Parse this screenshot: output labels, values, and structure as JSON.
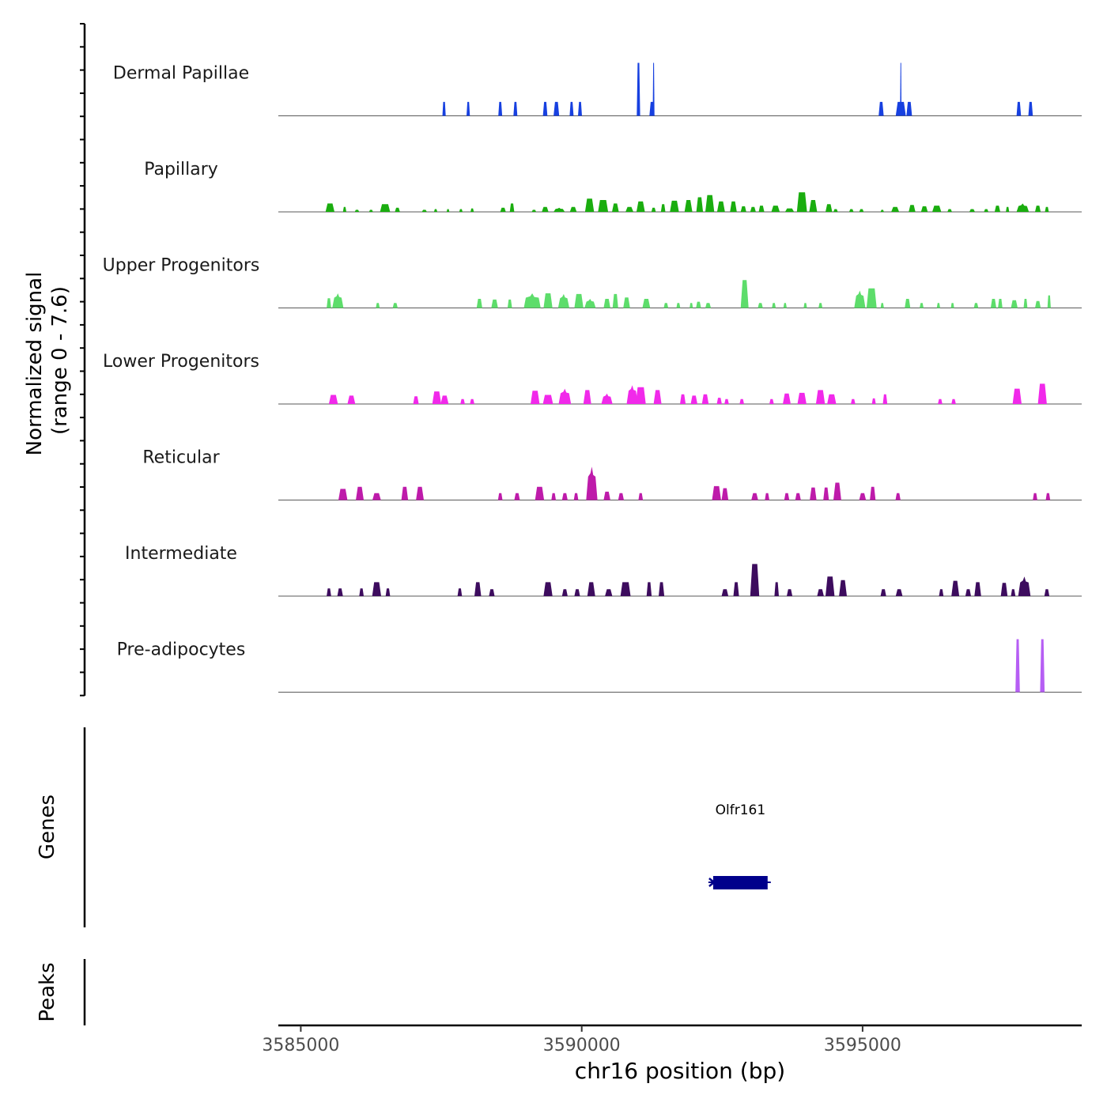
{
  "chart_data": {
    "type": "area",
    "chromosome": "chr16",
    "xlabel": "chr16 position (bp)",
    "xlim": [
      3584600,
      3598900
    ],
    "x_ticks": [
      3585000,
      3590000,
      3595000
    ],
    "x_tick_labels": [
      "3585000",
      "3590000",
      "3595000"
    ],
    "ylabel_line1": "Normalized signal",
    "ylabel_line2": "(range 0 - 7.6)",
    "ylim": [
      0,
      7.6
    ],
    "genes_label": "Genes",
    "peaks_label": "Peaks",
    "tracks": [
      {
        "name": "Dermal Papillae",
        "color": "#1740e0",
        "peaks": [
          [
            3587550,
            60,
            2.0
          ],
          [
            3587980,
            60,
            2.0
          ],
          [
            3588550,
            70,
            2.0
          ],
          [
            3588820,
            70,
            2.0
          ],
          [
            3589350,
            80,
            2.0
          ],
          [
            3589550,
            100,
            2.0
          ],
          [
            3589820,
            70,
            2.0
          ],
          [
            3589970,
            70,
            2.0
          ],
          [
            3591010,
            60,
            7.6
          ],
          [
            3591250,
            90,
            2.0
          ],
          [
            3591280,
            30,
            7.6
          ],
          [
            3595330,
            90,
            2.0
          ],
          [
            3595680,
            180,
            2.0
          ],
          [
            3595680,
            25,
            7.6
          ],
          [
            3595830,
            100,
            2.0
          ],
          [
            3597780,
            80,
            2.0
          ],
          [
            3597990,
            80,
            2.0
          ]
        ]
      },
      {
        "name": "Papillary",
        "color": "#1aad0f",
        "peaks": [
          [
            3585520,
            160,
            1.2
          ],
          [
            3585780,
            60,
            0.7
          ],
          [
            3586000,
            80,
            0.3
          ],
          [
            3586250,
            70,
            0.3
          ],
          [
            3586500,
            180,
            1.1
          ],
          [
            3586720,
            90,
            0.6
          ],
          [
            3587200,
            90,
            0.3
          ],
          [
            3587400,
            60,
            0.4
          ],
          [
            3587620,
            50,
            0.4
          ],
          [
            3587850,
            60,
            0.4
          ],
          [
            3588050,
            60,
            0.5
          ],
          [
            3588600,
            100,
            0.6
          ],
          [
            3588760,
            80,
            1.2
          ],
          [
            3589150,
            80,
            0.3
          ],
          [
            3589350,
            120,
            0.7
          ],
          [
            3589600,
            200,
            0.6
          ],
          [
            3589850,
            120,
            0.7
          ],
          [
            3590140,
            160,
            1.9
          ],
          [
            3590380,
            180,
            1.7
          ],
          [
            3590600,
            120,
            1.2
          ],
          [
            3590850,
            140,
            0.7
          ],
          [
            3591050,
            150,
            1.5
          ],
          [
            3591280,
            80,
            0.6
          ],
          [
            3591450,
            80,
            1.1
          ],
          [
            3591650,
            160,
            1.6
          ],
          [
            3591900,
            140,
            1.7
          ],
          [
            3592100,
            120,
            2.1
          ],
          [
            3592280,
            160,
            2.4
          ],
          [
            3592480,
            140,
            1.5
          ],
          [
            3592700,
            120,
            1.5
          ],
          [
            3592880,
            100,
            0.8
          ],
          [
            3593050,
            100,
            0.7
          ],
          [
            3593200,
            100,
            0.9
          ],
          [
            3593450,
            150,
            0.9
          ],
          [
            3593700,
            160,
            0.5
          ],
          [
            3593920,
            180,
            2.8
          ],
          [
            3594120,
            140,
            1.7
          ],
          [
            3594400,
            120,
            1.1
          ],
          [
            3594520,
            80,
            0.4
          ],
          [
            3594800,
            80,
            0.4
          ],
          [
            3594980,
            80,
            0.4
          ],
          [
            3595350,
            60,
            0.3
          ],
          [
            3595580,
            140,
            0.7
          ],
          [
            3595880,
            120,
            1.0
          ],
          [
            3596100,
            120,
            0.8
          ],
          [
            3596320,
            160,
            0.9
          ],
          [
            3596550,
            80,
            0.4
          ],
          [
            3596950,
            100,
            0.4
          ],
          [
            3597200,
            80,
            0.4
          ],
          [
            3597400,
            100,
            0.9
          ],
          [
            3597580,
            60,
            0.7
          ],
          [
            3597850,
            220,
            1.2
          ],
          [
            3598120,
            100,
            0.9
          ],
          [
            3598280,
            70,
            0.7
          ]
        ]
      },
      {
        "name": "Upper Progenitors",
        "color": "#5ddd6b",
        "peaks": [
          [
            3585500,
            80,
            1.4
          ],
          [
            3585660,
            200,
            2.1
          ],
          [
            3586370,
            70,
            0.7
          ],
          [
            3586680,
            90,
            0.7
          ],
          [
            3588180,
            100,
            1.3
          ],
          [
            3588450,
            120,
            1.2
          ],
          [
            3588720,
            80,
            1.2
          ],
          [
            3589120,
            300,
            2.1
          ],
          [
            3589400,
            160,
            2.1
          ],
          [
            3589680,
            200,
            2.0
          ],
          [
            3589950,
            160,
            2.0
          ],
          [
            3590150,
            200,
            1.3
          ],
          [
            3590450,
            120,
            1.3
          ],
          [
            3590600,
            100,
            2.0
          ],
          [
            3590800,
            120,
            1.5
          ],
          [
            3591150,
            140,
            1.3
          ],
          [
            3591500,
            80,
            0.7
          ],
          [
            3591720,
            70,
            0.7
          ],
          [
            3591950,
            60,
            0.7
          ],
          [
            3592080,
            90,
            0.9
          ],
          [
            3592250,
            100,
            0.7
          ],
          [
            3592900,
            140,
            4.0
          ],
          [
            3593180,
            90,
            0.7
          ],
          [
            3593420,
            70,
            0.7
          ],
          [
            3593620,
            60,
            0.7
          ],
          [
            3593980,
            60,
            0.7
          ],
          [
            3594250,
            70,
            0.7
          ],
          [
            3594950,
            200,
            2.5
          ],
          [
            3595160,
            180,
            2.8
          ],
          [
            3595350,
            60,
            0.7
          ],
          [
            3595800,
            100,
            1.3
          ],
          [
            3596050,
            70,
            0.7
          ],
          [
            3596350,
            60,
            0.7
          ],
          [
            3596600,
            60,
            0.7
          ],
          [
            3597020,
            80,
            0.7
          ],
          [
            3597330,
            100,
            1.3
          ],
          [
            3597450,
            80,
            1.3
          ],
          [
            3597700,
            120,
            1.1
          ],
          [
            3597900,
            70,
            1.3
          ],
          [
            3598120,
            100,
            1.0
          ],
          [
            3598320,
            60,
            1.8
          ]
        ]
      },
      {
        "name": "Lower Progenitors",
        "color": "#f129ea",
        "peaks": [
          [
            3585580,
            160,
            1.3
          ],
          [
            3585900,
            140,
            1.2
          ],
          [
            3587050,
            100,
            1.1
          ],
          [
            3587420,
            160,
            1.8
          ],
          [
            3587560,
            140,
            1.2
          ],
          [
            3587880,
            80,
            0.7
          ],
          [
            3588050,
            80,
            0.7
          ],
          [
            3589170,
            160,
            1.9
          ],
          [
            3589400,
            180,
            1.3
          ],
          [
            3589700,
            220,
            2.2
          ],
          [
            3590100,
            140,
            2.0
          ],
          [
            3590450,
            200,
            1.5
          ],
          [
            3590900,
            200,
            2.7
          ],
          [
            3591050,
            180,
            2.4
          ],
          [
            3591350,
            140,
            2.0
          ],
          [
            3591800,
            100,
            1.4
          ],
          [
            3592000,
            120,
            1.2
          ],
          [
            3592200,
            120,
            1.4
          ],
          [
            3592450,
            90,
            0.9
          ],
          [
            3592580,
            80,
            0.7
          ],
          [
            3592850,
            80,
            0.7
          ],
          [
            3593380,
            80,
            0.7
          ],
          [
            3593650,
            140,
            1.5
          ],
          [
            3593920,
            160,
            1.6
          ],
          [
            3594250,
            160,
            2.0
          ],
          [
            3594450,
            160,
            1.4
          ],
          [
            3594830,
            80,
            0.7
          ],
          [
            3595200,
            70,
            0.8
          ],
          [
            3595400,
            80,
            1.4
          ],
          [
            3596380,
            80,
            0.7
          ],
          [
            3596620,
            80,
            0.7
          ],
          [
            3597750,
            160,
            2.2
          ],
          [
            3598200,
            160,
            2.9
          ]
        ]
      },
      {
        "name": "Reticular",
        "color": "#be1baa",
        "peaks": [
          [
            3585750,
            160,
            1.6
          ],
          [
            3586050,
            140,
            1.9
          ],
          [
            3586350,
            150,
            1.0
          ],
          [
            3586850,
            120,
            1.9
          ],
          [
            3587120,
            140,
            1.9
          ],
          [
            3588550,
            80,
            1.0
          ],
          [
            3588850,
            100,
            1.0
          ],
          [
            3589250,
            160,
            1.9
          ],
          [
            3589500,
            80,
            1.0
          ],
          [
            3589700,
            100,
            1.0
          ],
          [
            3589900,
            80,
            1.0
          ],
          [
            3590180,
            200,
            4.8
          ],
          [
            3590450,
            120,
            1.2
          ],
          [
            3590700,
            100,
            1.0
          ],
          [
            3591050,
            80,
            1.0
          ],
          [
            3592400,
            160,
            2.0
          ],
          [
            3592550,
            120,
            1.7
          ],
          [
            3593080,
            120,
            1.0
          ],
          [
            3593300,
            80,
            1.0
          ],
          [
            3593650,
            90,
            1.0
          ],
          [
            3593850,
            100,
            1.0
          ],
          [
            3594120,
            120,
            1.8
          ],
          [
            3594350,
            100,
            1.8
          ],
          [
            3594550,
            140,
            2.5
          ],
          [
            3595000,
            120,
            1.0
          ],
          [
            3595180,
            100,
            1.9
          ],
          [
            3595630,
            90,
            1.0
          ],
          [
            3598070,
            80,
            1.0
          ],
          [
            3598300,
            80,
            1.0
          ]
        ]
      },
      {
        "name": "Intermediate",
        "color": "#3d0c5e",
        "peaks": [
          [
            3585500,
            80,
            1.1
          ],
          [
            3585700,
            100,
            1.1
          ],
          [
            3586080,
            80,
            1.1
          ],
          [
            3586350,
            160,
            2.0
          ],
          [
            3586550,
            80,
            1.1
          ],
          [
            3587830,
            80,
            1.1
          ],
          [
            3588150,
            120,
            2.0
          ],
          [
            3588400,
            100,
            1.0
          ],
          [
            3589400,
            160,
            2.0
          ],
          [
            3589700,
            100,
            1.0
          ],
          [
            3589920,
            100,
            1.0
          ],
          [
            3590170,
            140,
            2.0
          ],
          [
            3590480,
            130,
            1.0
          ],
          [
            3590780,
            180,
            2.0
          ],
          [
            3591200,
            90,
            2.0
          ],
          [
            3591420,
            100,
            2.0
          ],
          [
            3592550,
            120,
            1.0
          ],
          [
            3592750,
            100,
            2.0
          ],
          [
            3593080,
            160,
            4.6
          ],
          [
            3593470,
            80,
            2.0
          ],
          [
            3593700,
            100,
            1.0
          ],
          [
            3594250,
            120,
            1.0
          ],
          [
            3594420,
            160,
            2.8
          ],
          [
            3594650,
            140,
            2.3
          ],
          [
            3595370,
            100,
            1.0
          ],
          [
            3595650,
            120,
            1.0
          ],
          [
            3596400,
            80,
            1.0
          ],
          [
            3596650,
            140,
            2.2
          ],
          [
            3596880,
            100,
            1.0
          ],
          [
            3597050,
            120,
            2.0
          ],
          [
            3597520,
            120,
            1.9
          ],
          [
            3597680,
            80,
            1.0
          ],
          [
            3597880,
            220,
            2.8
          ],
          [
            3598280,
            90,
            1.0
          ]
        ]
      },
      {
        "name": "Pre-adipocytes",
        "color": "#b65ef4",
        "peaks": [
          [
            3597760,
            80,
            7.6
          ],
          [
            3598200,
            80,
            7.6
          ]
        ]
      }
    ],
    "genes": [
      {
        "name": "Olfr161",
        "start": 3592340,
        "end": 3593310,
        "strand": "-"
      }
    ],
    "peaks": []
  }
}
